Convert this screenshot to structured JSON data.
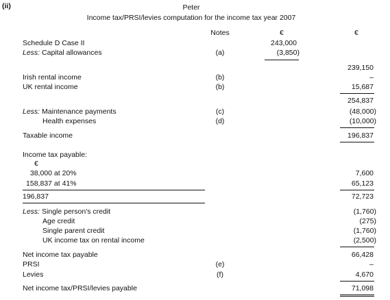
{
  "section_marker": "(ii)",
  "name": "Peter",
  "title": "Income tax/PRSI/levies computation for the income tax year 2007",
  "headers": {
    "notes": "Notes",
    "currency1": "€",
    "currency2": "€"
  },
  "rows": {
    "schedule_d": {
      "label": "Schedule D Case II",
      "amount1": "243,000"
    },
    "capital_allowances": {
      "prefix": "Less:",
      "label": " Capital allowances",
      "note": "(a)",
      "amount1": "(3,850)"
    },
    "subtotal1": {
      "amount2": "239,150"
    },
    "irish_rental": {
      "label": "Irish rental income",
      "note": "(b)",
      "amount2": "–"
    },
    "uk_rental": {
      "label": "UK rental income",
      "note": "(b)",
      "amount2": "15,687"
    },
    "subtotal2": {
      "amount2": "254,837"
    },
    "maintenance": {
      "prefix": "Less:",
      "label": " Maintenance payments",
      "note": "(c)",
      "amount2": "(48,000)"
    },
    "health": {
      "label": "Health expenses",
      "note": "(d)",
      "amount2": "(10,000)"
    },
    "taxable": {
      "label": "Taxable income",
      "amount2": "196,837"
    },
    "tax_payable_heading": {
      "label": "Income tax payable:"
    },
    "band_currency": {
      "label": "€"
    },
    "band1": {
      "amount": "38,000",
      "rate": " at 20%",
      "amount2": "7,600"
    },
    "band2": {
      "amount": "158,837",
      "rate": " at 41%",
      "amount2": "65,123"
    },
    "band_total": {
      "amount": "196,837",
      "amount2": "72,723"
    },
    "single_credit": {
      "prefix": "Less:",
      "label": " Single person's credit",
      "amount2": "(1,760)"
    },
    "age_credit": {
      "label": "Age credit",
      "amount2": "(275)"
    },
    "single_parent": {
      "label": "Single parent credit",
      "amount2": "(1,760)"
    },
    "uk_tax": {
      "label": "UK income tax on rental income",
      "amount2": "(2,500)"
    },
    "net_tax": {
      "label": "Net income tax payable",
      "amount2": "66,428"
    },
    "prsi": {
      "label": "PRSI",
      "note": "(e)",
      "amount2": "–"
    },
    "levies": {
      "label": "Levies",
      "note": "(f)",
      "amount2": "4,670"
    },
    "net_total": {
      "label": "Net income tax/PRSI/levies payable",
      "amount2": "71,098"
    }
  }
}
